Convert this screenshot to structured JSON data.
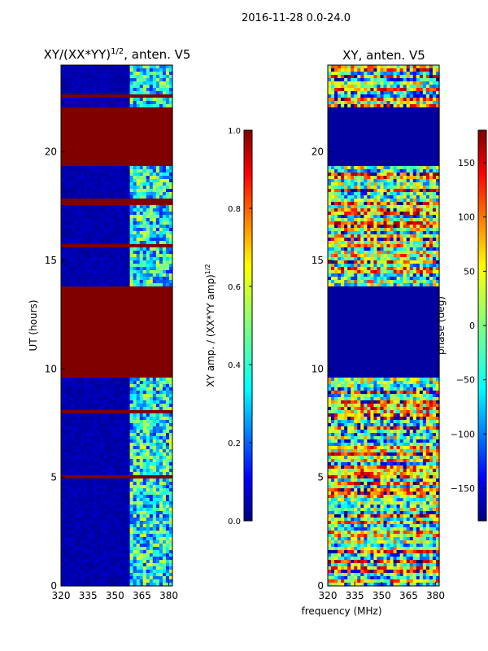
{
  "suptitle": "2016-11-28 0.0-24.0",
  "shared_xlabel": "frequency (MHz)",
  "chart_data": [
    {
      "type": "heatmap",
      "title_main": "XY/(XX*YY)",
      "title_sup": "1/2",
      "title_tail": ", anten. V5",
      "xlabel": "frequency (MHz)",
      "ylabel": "UT (hours)",
      "xlim": [
        320,
        382
      ],
      "ylim": [
        0,
        24
      ],
      "xticks": [
        320,
        335,
        350,
        365,
        380
      ],
      "yticks": [
        0,
        5,
        10,
        15,
        20
      ],
      "colormap": "jet",
      "colorbar": {
        "label_main": "XY amp. / (XX*YY amp)",
        "label_sup": "1/2",
        "range": [
          0.0,
          1.0
        ],
        "ticks": [
          "0.0",
          "0.2",
          "0.4",
          "0.6",
          "0.8",
          "1.0"
        ],
        "tick_values": [
          0.0,
          0.2,
          0.4,
          0.6,
          0.8,
          1.0
        ]
      },
      "saturated_bands_hours": [
        [
          9.6,
          13.8
        ],
        [
          19.4,
          22.1
        ],
        [
          17.5,
          17.8
        ]
      ],
      "active_band_mhz": [
        359,
        382
      ]
    },
    {
      "type": "heatmap",
      "title": "XY, anten. V5",
      "xlabel": "frequency (MHz)",
      "ylabel": "",
      "xlim": [
        320,
        382
      ],
      "ylim": [
        0,
        24
      ],
      "xticks": [
        320,
        335,
        350,
        365,
        380
      ],
      "yticks": [
        0,
        5,
        10,
        15,
        20
      ],
      "colormap": "jet",
      "colorbar": {
        "label": "phase (deg)",
        "range": [
          -180,
          180
        ],
        "ticks": [
          "150",
          "100",
          "50",
          "0",
          "−50",
          "−100",
          "−150"
        ],
        "tick_values": [
          150,
          100,
          50,
          0,
          -50,
          -100,
          -150
        ]
      },
      "flat_bands_hours": [
        [
          9.6,
          13.8
        ],
        [
          19.4,
          22.1
        ]
      ]
    }
  ],
  "colors": {
    "jet": [
      "#00007f",
      "#0000ff",
      "#007fff",
      "#00ffff",
      "#7fff7f",
      "#ffff00",
      "#ff7f00",
      "#ff0000",
      "#7f0000"
    ]
  }
}
